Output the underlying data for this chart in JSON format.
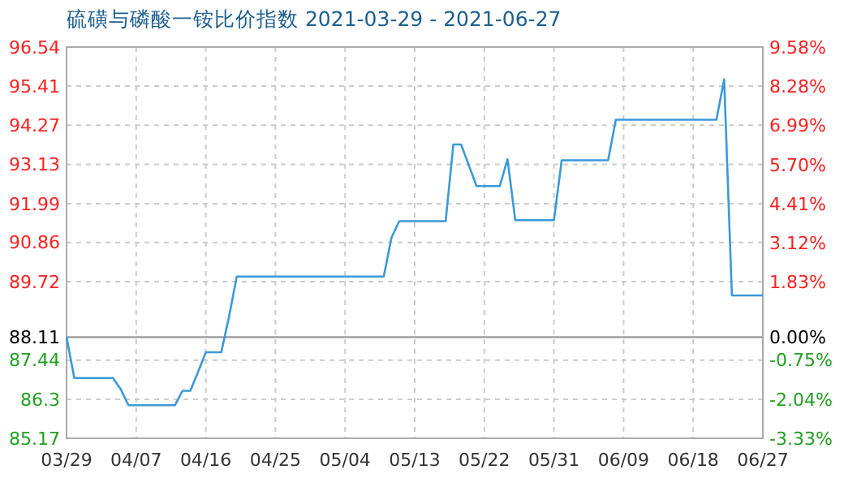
{
  "chart_data": {
    "type": "line",
    "title": "硫磺与磷酸一铵比价指数 2021-03-29 - 2021-06-27",
    "x": [
      "2021-03-29",
      "2021-03-30",
      "2021-04-04",
      "2021-04-05",
      "2021-04-06",
      "2021-04-12",
      "2021-04-13",
      "2021-04-14",
      "2021-04-15",
      "2021-04-16",
      "2021-04-18",
      "2021-04-19",
      "2021-04-20",
      "2021-05-09",
      "2021-05-10",
      "2021-05-11",
      "2021-05-17",
      "2021-05-18",
      "2021-05-19",
      "2021-05-20",
      "2021-05-21",
      "2021-05-24",
      "2021-05-25",
      "2021-05-26",
      "2021-05-31",
      "2021-06-01",
      "2021-06-07",
      "2021-06-08",
      "2021-06-21",
      "2021-06-22",
      "2021-06-23",
      "2021-06-27"
    ],
    "series": [
      {
        "color": "#3a9ad9",
        "values": [
          88.11,
          86.92,
          86.92,
          86.6,
          86.13,
          86.13,
          86.55,
          86.55,
          87.1,
          87.67,
          87.67,
          88.7,
          89.87,
          89.87,
          91.0,
          91.48,
          91.48,
          93.71,
          93.71,
          93.1,
          92.5,
          92.5,
          93.28,
          91.51,
          91.51,
          93.25,
          93.25,
          94.43,
          94.43,
          95.6,
          89.32,
          89.32
        ]
      }
    ],
    "xlim": [
      "2021-03-29",
      "2021-06-27"
    ],
    "xticks": [
      {
        "value": "2021-03-29",
        "label": "03/29"
      },
      {
        "value": "2021-04-07",
        "label": "04/07"
      },
      {
        "value": "2021-04-16",
        "label": "04/16"
      },
      {
        "value": "2021-04-25",
        "label": "04/25"
      },
      {
        "value": "2021-05-04",
        "label": "05/04"
      },
      {
        "value": "2021-05-13",
        "label": "05/13"
      },
      {
        "value": "2021-05-22",
        "label": "05/22"
      },
      {
        "value": "2021-05-31",
        "label": "05/31"
      },
      {
        "value": "2021-06-09",
        "label": "06/09"
      },
      {
        "value": "2021-06-18",
        "label": "06/18"
      },
      {
        "value": "2021-06-27",
        "label": "06/27"
      }
    ],
    "ylim": [
      85.17,
      96.54
    ],
    "yticks": [
      96.54,
      95.41,
      94.27,
      93.13,
      91.99,
      90.86,
      89.72,
      88.11,
      87.44,
      86.3,
      85.17
    ],
    "y2lim": [
      -3.33,
      9.58
    ],
    "y2ticks": [
      {
        "value": 9.58,
        "label": "9.58%"
      },
      {
        "value": 8.28,
        "label": "8.28%"
      },
      {
        "value": 6.99,
        "label": "6.99%"
      },
      {
        "value": 5.7,
        "label": "5.70%"
      },
      {
        "value": 4.41,
        "label": "4.41%"
      },
      {
        "value": 3.12,
        "label": "3.12%"
      },
      {
        "value": 1.83,
        "label": "1.83%"
      },
      {
        "value": 0,
        "label": "0.00%"
      },
      {
        "value": -0.75,
        "label": "-0.75%"
      },
      {
        "value": -2.04,
        "label": "-2.04%"
      },
      {
        "value": -3.33,
        "label": "-3.33%"
      }
    ],
    "ref_lines": [
      {
        "axis": "y",
        "value": 88.11,
        "color": "#999999"
      }
    ],
    "grid": true,
    "line_style": "solid",
    "marker": "none"
  }
}
